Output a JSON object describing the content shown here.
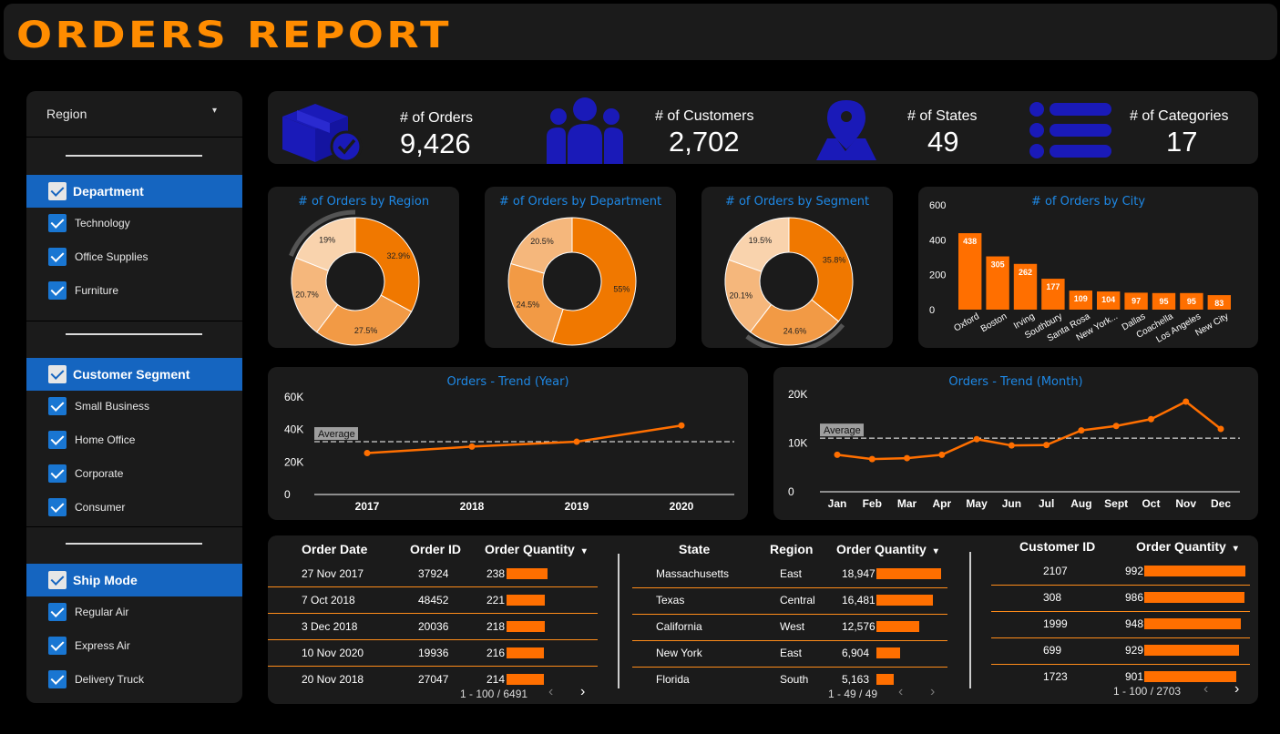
{
  "header": {
    "title": "ORDERS REPORT"
  },
  "sidebar": {
    "dropdown_label": "Region",
    "groups": [
      {
        "label": "Department",
        "items": [
          "Technology",
          "Office Supplies",
          "Furniture"
        ]
      },
      {
        "label": "Customer Segment",
        "items": [
          "Small Business",
          "Home Office",
          "Corporate",
          "Consumer"
        ]
      },
      {
        "label": "Ship Mode",
        "items": [
          "Regular Air",
          "Express Air",
          "Delivery Truck"
        ]
      }
    ]
  },
  "kpis": [
    {
      "label": "# of Orders",
      "value": "9,426",
      "icon": "box-check-icon"
    },
    {
      "label": "# of Customers",
      "value": "2,702",
      "icon": "people-icon"
    },
    {
      "label": "# of States",
      "value": "49",
      "icon": "map-pin-icon"
    },
    {
      "label": "# of Categories",
      "value": "17",
      "icon": "list-icon"
    }
  ],
  "colors": {
    "accent": "#ff8c00",
    "bar": "#ff6f00",
    "panel": "#1b1b1b",
    "title_blue": "#1e88e5",
    "icon_blue": "#1a1ab8",
    "check_blue": "#1976d2",
    "slice1": "#f07800",
    "slice2": "#f29a45",
    "slice3": "#f5b77c",
    "slice4": "#f9d3ad"
  },
  "chart_data": [
    {
      "type": "pie",
      "title": "# of Orders by Region",
      "labels": [
        "32.9%",
        "27.5%",
        "20.7%",
        "19%"
      ],
      "values": [
        32.9,
        27.5,
        20.7,
        19.0
      ]
    },
    {
      "type": "pie",
      "title": "# of Orders by Department",
      "labels": [
        "55%",
        "24.5%",
        "20.5%"
      ],
      "values": [
        55,
        24.5,
        20.5
      ]
    },
    {
      "type": "pie",
      "title": "# of Orders by Segment",
      "labels": [
        "35.8%",
        "24.6%",
        "20.1%",
        "19.5%"
      ],
      "values": [
        35.8,
        24.6,
        20.1,
        19.5
      ]
    },
    {
      "type": "bar",
      "title": "# of Orders by City",
      "categories": [
        "Oxford",
        "Boston",
        "Irving",
        "Southbury",
        "Santa Rosa",
        "New York...",
        "Dallas",
        "Coachella",
        "Los Angeles",
        "New City"
      ],
      "values": [
        438,
        305,
        262,
        177,
        109,
        104,
        97,
        95,
        95,
        83
      ],
      "ylim": [
        0,
        600
      ],
      "yticks": [
        "600",
        "400",
        "200",
        "0"
      ]
    },
    {
      "type": "line",
      "title": "Orders - Trend (Year)",
      "x": [
        "2017",
        "2018",
        "2019",
        "2020"
      ],
      "values": [
        25500,
        29500,
        32500,
        42500
      ],
      "ylim": [
        0,
        60000
      ],
      "yticks": [
        "60K",
        "40K",
        "20K",
        "0"
      ],
      "average": 32500,
      "average_label": "Average"
    },
    {
      "type": "line",
      "title": "Orders - Trend (Month)",
      "x": [
        "Jan",
        "Feb",
        "Mar",
        "Apr",
        "May",
        "Jun",
        "Jul",
        "Aug",
        "Sept",
        "Oct",
        "Nov",
        "Dec"
      ],
      "values": [
        7600,
        6700,
        6900,
        7600,
        10800,
        9500,
        9600,
        12600,
        13500,
        14900,
        18500,
        12900
      ],
      "ylim": [
        0,
        20000
      ],
      "yticks": [
        "20K",
        "10K",
        "0"
      ],
      "average": 11000,
      "average_label": "Average"
    }
  ],
  "tables": {
    "orders": {
      "headers": [
        "Order Date",
        "Order ID",
        "Order Quantity"
      ],
      "rows": [
        {
          "date": "27 Nov 2017",
          "id": "37924",
          "qty": "238",
          "frac": 0.239
        },
        {
          "date": "7 Oct 2018",
          "id": "48452",
          "qty": "221",
          "frac": 0.222
        },
        {
          "date": "3 Dec 2018",
          "id": "20036",
          "qty": "218",
          "frac": 0.219
        },
        {
          "date": "10 Nov 2020",
          "id": "19936",
          "qty": "216",
          "frac": 0.217
        },
        {
          "date": "20 Nov 2018",
          "id": "27047",
          "qty": "214",
          "frac": 0.215
        }
      ],
      "pager": "1 - 100 / 6491"
    },
    "states": {
      "headers": [
        "State",
        "Region",
        "Order Quantity"
      ],
      "rows": [
        {
          "state": "Massachusetts",
          "region": "East",
          "qty": "18,947",
          "frac": 1.0
        },
        {
          "state": "Texas",
          "region": "Central",
          "qty": "16,481",
          "frac": 0.87
        },
        {
          "state": "California",
          "region": "West",
          "qty": "12,576",
          "frac": 0.664
        },
        {
          "state": "New York",
          "region": "East",
          "qty": "6,904",
          "frac": 0.364
        },
        {
          "state": "Florida",
          "region": "South",
          "qty": "5,163",
          "frac": 0.272
        }
      ],
      "pager": "1 - 49 / 49"
    },
    "customers": {
      "headers": [
        "Customer ID",
        "Order Quantity"
      ],
      "rows": [
        {
          "id": "2107",
          "qty": "992",
          "frac": 1.0
        },
        {
          "id": "308",
          "qty": "986",
          "frac": 0.994
        },
        {
          "id": "1999",
          "qty": "948",
          "frac": 0.956
        },
        {
          "id": "699",
          "qty": "929",
          "frac": 0.937
        },
        {
          "id": "1723",
          "qty": "901",
          "frac": 0.908
        }
      ],
      "pager": "1 - 100 / 2703"
    }
  },
  "glyphs": {
    "caret_down": "▾",
    "prev": "‹",
    "next": "›"
  }
}
